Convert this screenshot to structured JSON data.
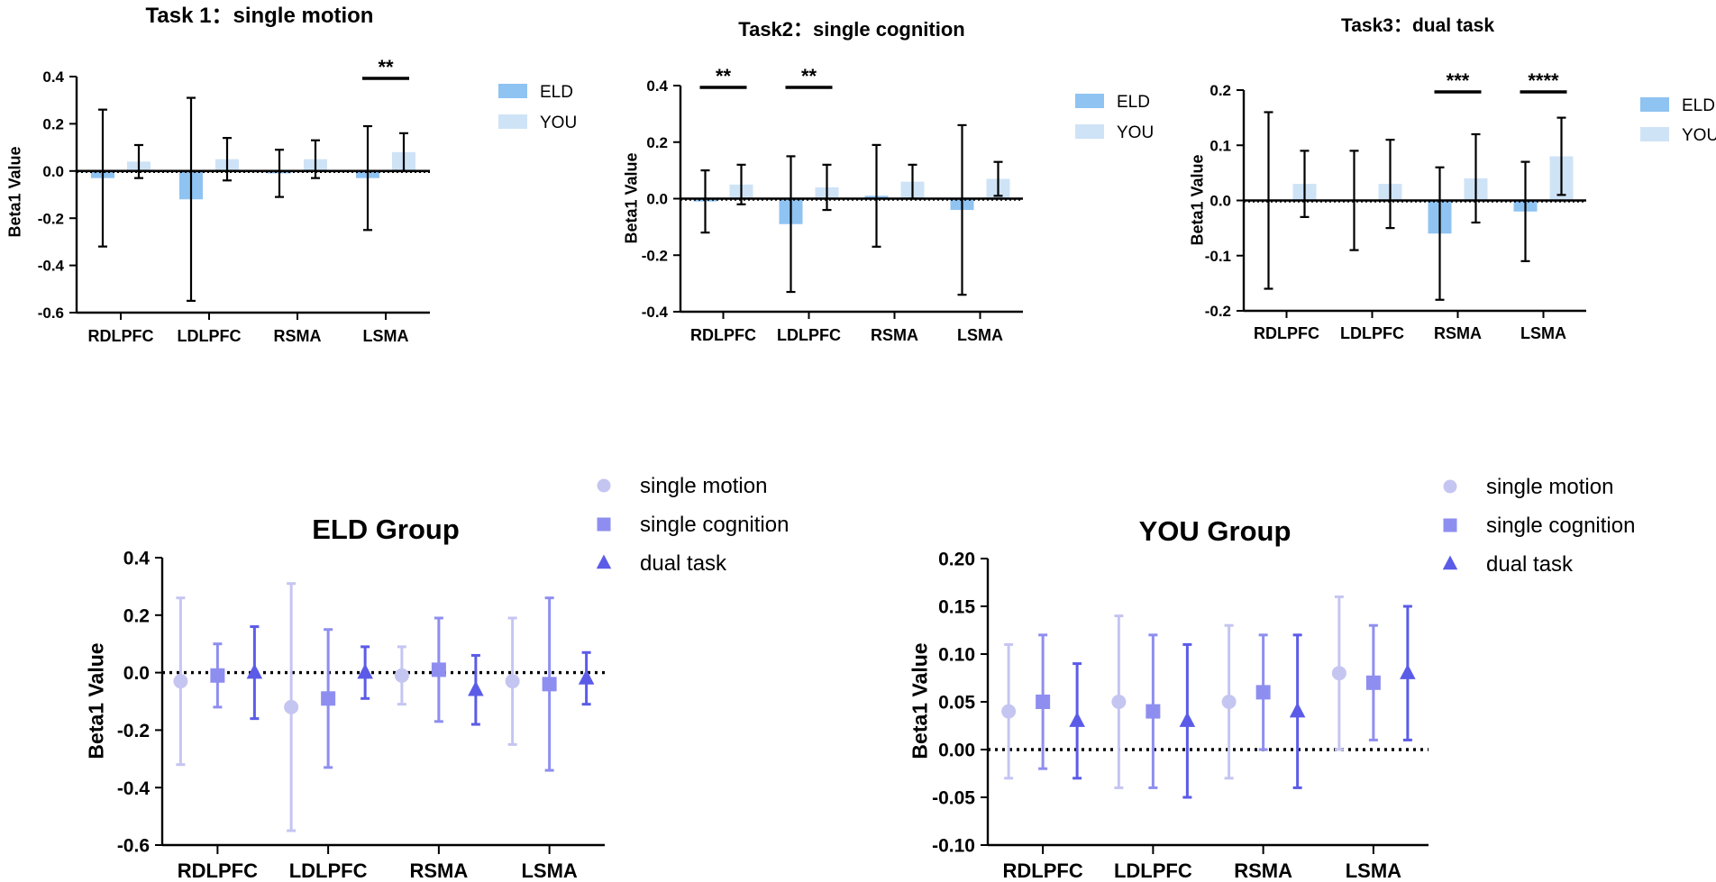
{
  "chart_data": [
    {
      "id": "task1",
      "type": "bar",
      "title": "Task 1：single motion",
      "ylabel": "Beta1 Value",
      "xlabel": "",
      "ylim": [
        -0.6,
        0.4
      ],
      "yticks": [
        "0.4",
        "0.2",
        "0.0",
        "-0.2",
        "-0.4",
        "-0.6"
      ],
      "ytick_values": [
        0.4,
        0.2,
        0.0,
        -0.2,
        -0.4,
        -0.6
      ],
      "categories": [
        "RDLPFC",
        "LDLPFC",
        "RSMA",
        "LSMA"
      ],
      "series": [
        {
          "name": "ELD",
          "color": "#8fc3f2",
          "values": [
            -0.03,
            -0.12,
            -0.01,
            -0.03
          ],
          "err_low": [
            -0.32,
            -0.55,
            -0.11,
            -0.25
          ],
          "err_high": [
            0.26,
            0.31,
            0.09,
            0.19
          ]
        },
        {
          "name": "YOU",
          "color": "#cfe3f7",
          "values": [
            0.04,
            0.05,
            0.05,
            0.08
          ],
          "err_low": [
            -0.03,
            -0.04,
            -0.03,
            0.0
          ],
          "err_high": [
            0.11,
            0.14,
            0.13,
            0.16
          ]
        }
      ],
      "significance": [
        {
          "category_index": 3,
          "label": "**"
        }
      ],
      "legend": [
        "ELD",
        "YOU"
      ],
      "legend_position": "right"
    },
    {
      "id": "task2",
      "type": "bar",
      "title": "Task2：single cognition",
      "ylabel": "Beta1 Value",
      "xlabel": "",
      "ylim": [
        -0.4,
        0.4
      ],
      "yticks": [
        "0.4",
        "0.2",
        "0.0",
        "-0.2",
        "-0.4"
      ],
      "ytick_values": [
        0.4,
        0.2,
        0.0,
        -0.2,
        -0.4
      ],
      "categories": [
        "RDLPFC",
        "LDLPFC",
        "RSMA",
        "LSMA"
      ],
      "series": [
        {
          "name": "ELD",
          "color": "#8fc3f2",
          "values": [
            -0.01,
            -0.09,
            0.01,
            -0.04
          ],
          "err_low": [
            -0.12,
            -0.33,
            -0.17,
            -0.34
          ],
          "err_high": [
            0.1,
            0.15,
            0.19,
            0.26
          ]
        },
        {
          "name": "YOU",
          "color": "#cfe3f7",
          "values": [
            0.05,
            0.04,
            0.06,
            0.07
          ],
          "err_low": [
            -0.02,
            -0.04,
            0.0,
            0.01
          ],
          "err_high": [
            0.12,
            0.12,
            0.12,
            0.13
          ]
        }
      ],
      "significance": [
        {
          "category_index": 0,
          "label": "**"
        },
        {
          "category_index": 1,
          "label": "**"
        }
      ],
      "legend": [
        "ELD",
        "YOU"
      ],
      "legend_position": "right"
    },
    {
      "id": "task3",
      "type": "bar",
      "title": "Task3：dual task",
      "ylabel": "Beta1 Value",
      "xlabel": "",
      "ylim": [
        -0.2,
        0.2
      ],
      "yticks": [
        "0.2",
        "0.1",
        "0.0",
        "-0.1",
        "-0.2"
      ],
      "ytick_values": [
        0.2,
        0.1,
        0.0,
        -0.1,
        -0.2
      ],
      "categories": [
        "RDLPFC",
        "LDLPFC",
        "RSMA",
        "LSMA"
      ],
      "series": [
        {
          "name": "ELD",
          "color": "#8fc3f2",
          "values": [
            0.0,
            0.0,
            -0.06,
            -0.02
          ],
          "err_low": [
            -0.16,
            -0.09,
            -0.18,
            -0.11
          ],
          "err_high": [
            0.16,
            0.09,
            0.06,
            0.07
          ]
        },
        {
          "name": "YOU",
          "color": "#cfe3f7",
          "values": [
            0.03,
            0.03,
            0.04,
            0.08
          ],
          "err_low": [
            -0.03,
            -0.05,
            -0.04,
            0.01
          ],
          "err_high": [
            0.09,
            0.11,
            0.12,
            0.15
          ]
        }
      ],
      "significance": [
        {
          "category_index": 2,
          "label": "***"
        },
        {
          "category_index": 3,
          "label": "****"
        }
      ],
      "legend": [
        "ELD",
        "YOU"
      ],
      "legend_position": "right"
    },
    {
      "id": "eld",
      "type": "scatter",
      "title": "ELD Group",
      "ylabel": "Beta1 Value",
      "xlabel": "",
      "ylim": [
        -0.6,
        0.4
      ],
      "yticks": [
        "0.4",
        "0.2",
        "0.0",
        "-0.2",
        "-0.4",
        "-0.6"
      ],
      "ytick_values": [
        0.4,
        0.2,
        0.0,
        -0.2,
        -0.4,
        -0.6
      ],
      "categories": [
        "RDLPFC",
        "LDLPFC",
        "RSMA",
        "LSMA"
      ],
      "series": [
        {
          "name": "single motion",
          "marker": "circle",
          "color": "#c5c5f2",
          "values": [
            -0.03,
            -0.12,
            -0.01,
            -0.03
          ],
          "err_low": [
            -0.32,
            -0.55,
            -0.11,
            -0.25
          ],
          "err_high": [
            0.26,
            0.31,
            0.09,
            0.19
          ]
        },
        {
          "name": "single cognition",
          "marker": "square",
          "color": "#8e8ef0",
          "values": [
            -0.01,
            -0.09,
            0.01,
            -0.04
          ],
          "err_low": [
            -0.12,
            -0.33,
            -0.17,
            -0.34
          ],
          "err_high": [
            0.1,
            0.15,
            0.19,
            0.26
          ]
        },
        {
          "name": "dual task",
          "marker": "triangle",
          "color": "#5b5be8",
          "values": [
            0.0,
            0.0,
            -0.06,
            -0.02
          ],
          "err_low": [
            -0.16,
            -0.09,
            -0.18,
            -0.11
          ],
          "err_high": [
            0.16,
            0.09,
            0.06,
            0.07
          ]
        }
      ],
      "legend": [
        "single motion",
        "single cognition",
        "dual task"
      ],
      "legend_position": "top-right"
    },
    {
      "id": "you",
      "type": "scatter",
      "title": "YOU Group",
      "ylabel": "Beta1 Value",
      "xlabel": "",
      "ylim": [
        -0.1,
        0.2
      ],
      "yticks": [
        "0.20",
        "0.15",
        "0.10",
        "0.05",
        "0.00",
        "-0.05",
        "-0.10"
      ],
      "ytick_values": [
        0.2,
        0.15,
        0.1,
        0.05,
        0.0,
        -0.05,
        -0.1
      ],
      "categories": [
        "RDLPFC",
        "LDLPFC",
        "RSMA",
        "LSMA"
      ],
      "series": [
        {
          "name": "single motion",
          "marker": "circle",
          "color": "#c5c5f2",
          "values": [
            0.04,
            0.05,
            0.05,
            0.08
          ],
          "err_low": [
            -0.03,
            -0.04,
            -0.03,
            0.0
          ],
          "err_high": [
            0.11,
            0.14,
            0.13,
            0.16
          ]
        },
        {
          "name": "single cognition",
          "marker": "square",
          "color": "#8e8ef0",
          "values": [
            0.05,
            0.04,
            0.06,
            0.07
          ],
          "err_low": [
            -0.02,
            -0.04,
            0.0,
            0.01
          ],
          "err_high": [
            0.12,
            0.12,
            0.12,
            0.13
          ]
        },
        {
          "name": "dual task",
          "marker": "triangle",
          "color": "#5b5be8",
          "values": [
            0.03,
            0.03,
            0.04,
            0.08
          ],
          "err_low": [
            -0.03,
            -0.05,
            -0.04,
            0.01
          ],
          "err_high": [
            0.09,
            0.11,
            0.12,
            0.15
          ]
        }
      ],
      "legend": [
        "single motion",
        "single cognition",
        "dual task"
      ],
      "legend_position": "top-right"
    }
  ]
}
